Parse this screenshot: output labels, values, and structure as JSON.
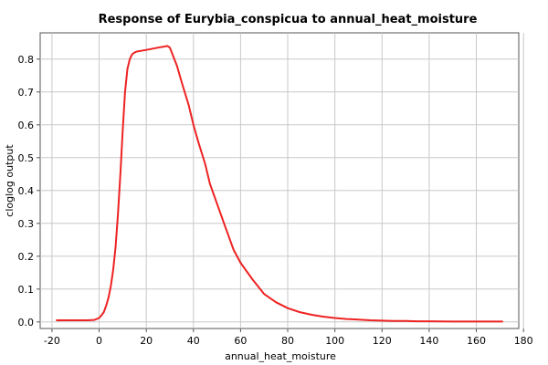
{
  "chart_data": {
    "type": "line",
    "title": "Response of Eurybia_conspicua to annual_heat_moisture",
    "xlabel": "annual_heat_moisture",
    "ylabel": "cloglog output",
    "xlim": [
      -25,
      178
    ],
    "ylim": [
      -0.02,
      0.88
    ],
    "xticks": [
      -20,
      0,
      20,
      40,
      60,
      80,
      100,
      120,
      140,
      160,
      180
    ],
    "yticks": [
      0.0,
      0.1,
      0.2,
      0.3,
      0.4,
      0.5,
      0.6,
      0.7,
      0.8
    ],
    "grid": true,
    "line_color": "#ee2222",
    "series": [
      {
        "x": [
          -18,
          -10,
          -5,
          -2,
          0,
          1,
          2,
          3,
          4,
          5,
          6,
          7,
          8,
          9,
          10,
          11,
          12,
          13,
          14,
          15,
          16,
          20,
          25,
          29,
          30,
          33,
          35,
          38,
          40,
          42,
          45,
          47,
          50,
          53,
          55,
          57,
          60,
          65,
          70,
          75,
          80,
          85,
          90,
          95,
          100,
          105,
          110,
          115,
          120,
          125,
          130,
          135,
          140,
          150,
          160,
          171
        ],
        "y": [
          0.005,
          0.005,
          0.005,
          0.006,
          0.012,
          0.02,
          0.03,
          0.05,
          0.075,
          0.11,
          0.16,
          0.23,
          0.33,
          0.45,
          0.58,
          0.7,
          0.77,
          0.8,
          0.815,
          0.82,
          0.823,
          0.828,
          0.835,
          0.84,
          0.835,
          0.78,
          0.73,
          0.66,
          0.6,
          0.55,
          0.48,
          0.42,
          0.36,
          0.3,
          0.26,
          0.22,
          0.18,
          0.13,
          0.085,
          0.06,
          0.042,
          0.03,
          0.022,
          0.016,
          0.012,
          0.009,
          0.007,
          0.005,
          0.004,
          0.003,
          0.003,
          0.002,
          0.002,
          0.001,
          0.001,
          0.001
        ]
      }
    ]
  }
}
